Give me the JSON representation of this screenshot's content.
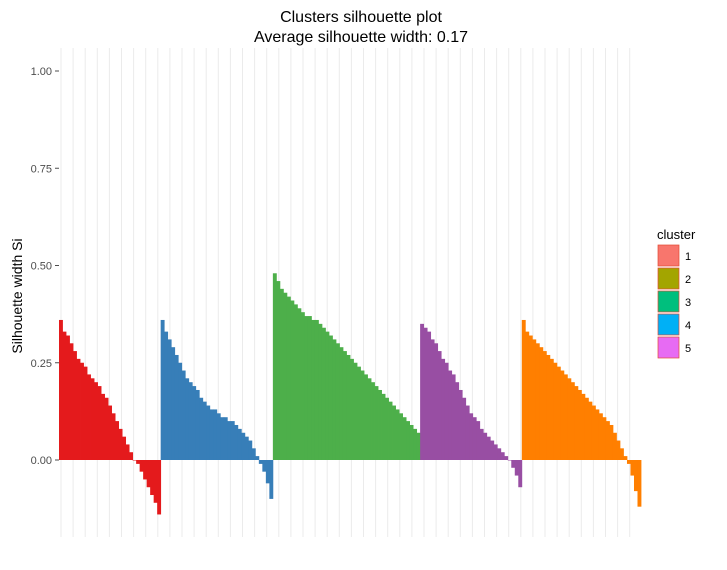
{
  "chart_data": {
    "type": "bar",
    "title": "Clusters silhouette plot",
    "subtitle": "Average silhouette width: 0.17",
    "xlabel": "",
    "ylabel": "Silhouette width Si",
    "ylim": [
      -0.15,
      1.0
    ],
    "yticks": [
      "1.00",
      "0.75",
      "0.50",
      "0.25",
      "0.00"
    ],
    "ytick_values": [
      1.0,
      0.75,
      0.5,
      0.25,
      0.0
    ],
    "grid": "vertical minor lines",
    "legend": {
      "title": "cluster",
      "placement": "right",
      "entries": [
        {
          "label": "1",
          "color": "#F8766D"
        },
        {
          "label": "2",
          "color": "#A3A500"
        },
        {
          "label": "3",
          "color": "#00BF7D"
        },
        {
          "label": "4",
          "color": "#00B0F6"
        },
        {
          "label": "5",
          "color": "#E76BF3"
        }
      ]
    },
    "series": [
      {
        "cluster": "1",
        "color": "#E41A1C",
        "values": [
          0.36,
          0.33,
          0.32,
          0.3,
          0.28,
          0.26,
          0.25,
          0.24,
          0.22,
          0.21,
          0.2,
          0.19,
          0.17,
          0.16,
          0.14,
          0.12,
          0.1,
          0.08,
          0.06,
          0.04,
          0.02,
          0.0,
          -0.01,
          -0.03,
          -0.05,
          -0.07,
          -0.09,
          -0.11,
          -0.14
        ]
      },
      {
        "cluster": "2",
        "color": "#377EB8",
        "values": [
          0.36,
          0.33,
          0.31,
          0.29,
          0.27,
          0.25,
          0.23,
          0.21,
          0.2,
          0.19,
          0.18,
          0.16,
          0.15,
          0.14,
          0.13,
          0.13,
          0.12,
          0.11,
          0.11,
          0.1,
          0.1,
          0.09,
          0.08,
          0.07,
          0.06,
          0.05,
          0.03,
          0.01,
          -0.01,
          -0.03,
          -0.06,
          -0.1
        ]
      },
      {
        "cluster": "3",
        "color": "#4DAF4A",
        "values": [
          0.48,
          0.46,
          0.44,
          0.43,
          0.42,
          0.41,
          0.4,
          0.39,
          0.38,
          0.37,
          0.37,
          0.36,
          0.36,
          0.35,
          0.34,
          0.33,
          0.32,
          0.31,
          0.3,
          0.29,
          0.28,
          0.27,
          0.26,
          0.25,
          0.24,
          0.23,
          0.22,
          0.21,
          0.2,
          0.19,
          0.18,
          0.17,
          0.16,
          0.15,
          0.14,
          0.13,
          0.12,
          0.11,
          0.1,
          0.09,
          0.08,
          0.07
        ]
      },
      {
        "cluster": "4",
        "color": "#984EA3",
        "values": [
          0.35,
          0.34,
          0.33,
          0.31,
          0.3,
          0.28,
          0.26,
          0.25,
          0.23,
          0.22,
          0.2,
          0.18,
          0.16,
          0.14,
          0.12,
          0.11,
          0.1,
          0.08,
          0.07,
          0.06,
          0.05,
          0.04,
          0.03,
          0.02,
          0.01,
          0.0,
          -0.02,
          -0.04,
          -0.07
        ]
      },
      {
        "cluster": "5",
        "color": "#FF7F00",
        "values": [
          0.36,
          0.33,
          0.32,
          0.31,
          0.3,
          0.29,
          0.28,
          0.27,
          0.26,
          0.25,
          0.24,
          0.23,
          0.22,
          0.21,
          0.2,
          0.19,
          0.18,
          0.17,
          0.16,
          0.15,
          0.14,
          0.13,
          0.12,
          0.11,
          0.1,
          0.09,
          0.07,
          0.05,
          0.03,
          0.01,
          -0.01,
          -0.04,
          -0.08,
          -0.12
        ]
      }
    ]
  }
}
